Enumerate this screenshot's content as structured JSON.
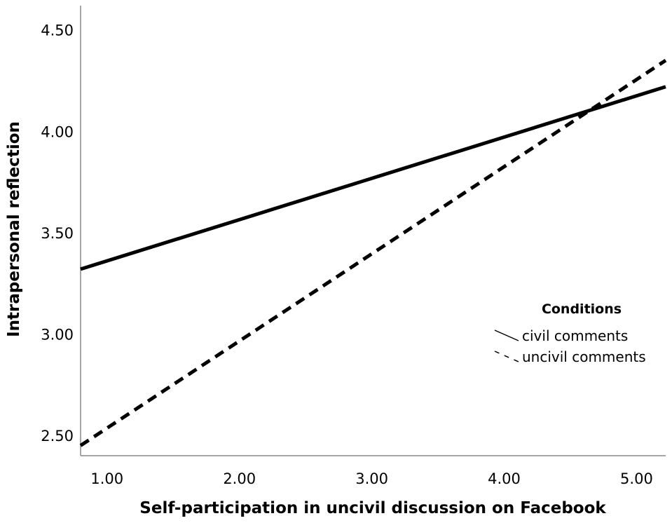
{
  "chart_data": {
    "type": "line",
    "title": "",
    "xlabel": "Self-participation in uncivil discussion on Facebook",
    "ylabel": "Intrapersonal reflection",
    "xlim": [
      0.8,
      5.22
    ],
    "ylim": [
      2.4,
      4.62
    ],
    "x_ticks": [
      1.0,
      2.0,
      3.0,
      4.0,
      5.0
    ],
    "x_tick_labels": [
      "1.00",
      "2.00",
      "3.00",
      "4.00",
      "5.00"
    ],
    "y_ticks": [
      2.5,
      3.0,
      3.5,
      4.0,
      4.5
    ],
    "y_tick_labels": [
      "2.50",
      "3.00",
      "3.50",
      "4.00",
      "4.50"
    ],
    "grid": false,
    "legend": {
      "title": "Conditions",
      "placement": "right",
      "entries": [
        "civil comments",
        "uncivil comments"
      ]
    },
    "series": [
      {
        "name": "civil comments",
        "style": "solid",
        "color": "#000000",
        "x": [
          0.8,
          5.22
        ],
        "y": [
          3.32,
          4.22
        ]
      },
      {
        "name": "uncivil comments",
        "style": "dashed",
        "color": "#000000",
        "x": [
          0.8,
          5.22
        ],
        "y": [
          2.45,
          4.35
        ]
      }
    ]
  }
}
